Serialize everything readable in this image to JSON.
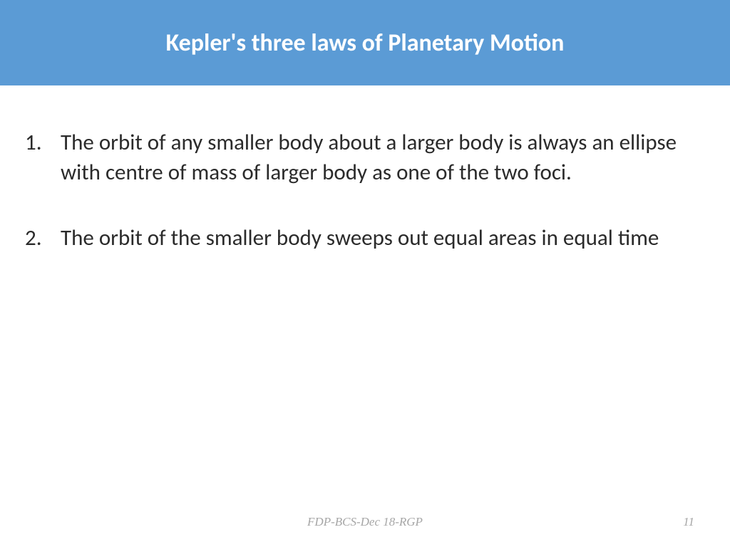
{
  "header": {
    "title": "Kepler's three laws of Planetary Motion",
    "background_color": "#5b9bd5",
    "text_color": "#ffffff",
    "font_size": 34,
    "font_weight": "bold"
  },
  "content": {
    "text_color": "#2b2b2b",
    "font_size": 31,
    "items": [
      {
        "number": "1.",
        "text": "The orbit of any smaller body about a larger body is always an ellipse with centre of mass of larger body as one of the two foci."
      },
      {
        "number": "2.",
        "text": "The orbit of the smaller body sweeps out equal areas in equal time"
      }
    ]
  },
  "footer": {
    "center_text": "FDP-BCS-Dec 18-RGP",
    "page_number": "11",
    "text_color": "#a6a6a6",
    "font_size": 17
  },
  "background_color": "#ffffff"
}
